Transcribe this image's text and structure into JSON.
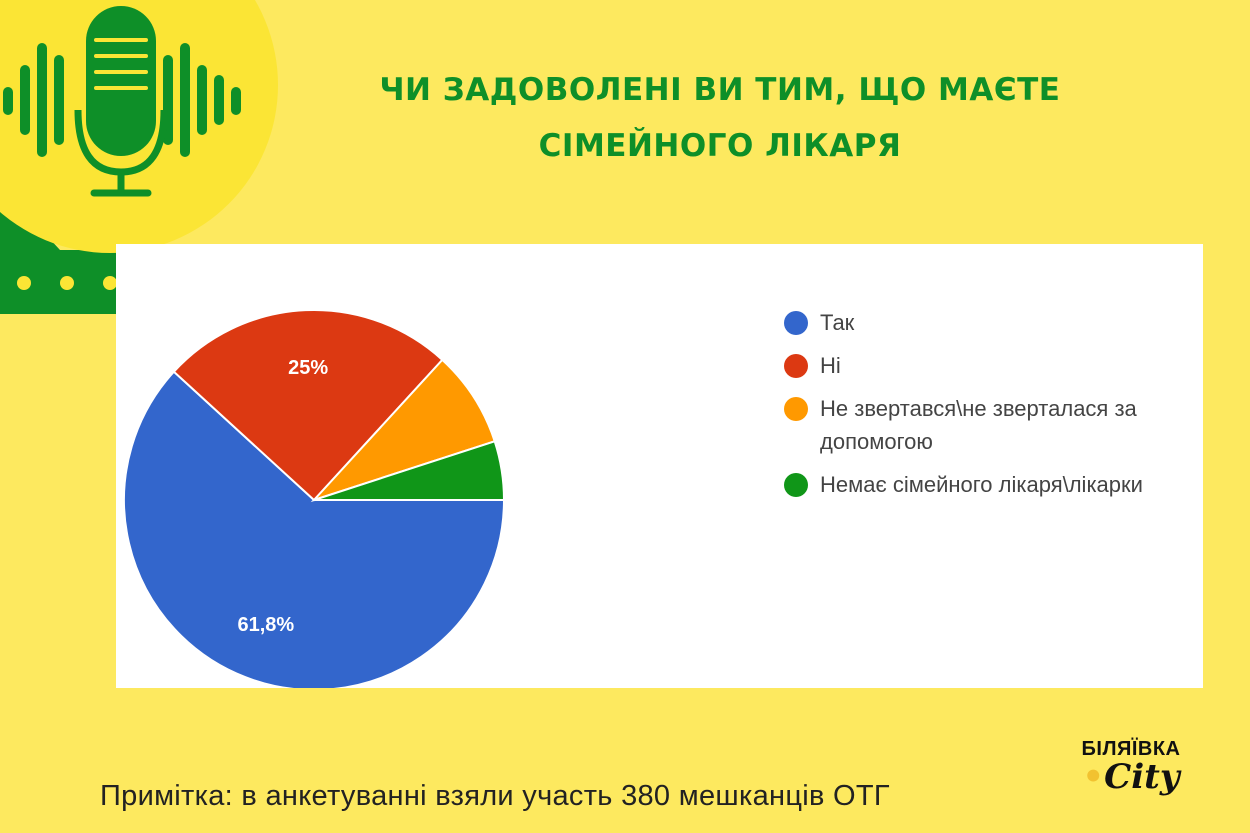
{
  "title": {
    "line1": "Чи задоволені ви тим, що маєте",
    "line2": "сімейного лікаря"
  },
  "chart_data": {
    "type": "pie",
    "categories": [
      "Так",
      "Ні",
      "Не звертався\\не зверталася за допомогою",
      "Немає сімейного лікаря\\лікарки"
    ],
    "values": [
      61.8,
      25,
      8.2,
      5
    ],
    "colors": [
      "#3366cc",
      "#dc3912",
      "#ff9900",
      "#109618"
    ],
    "data_labels": [
      "61,8%",
      "25%",
      "",
      ""
    ],
    "legend_position": "right"
  },
  "legend": {
    "item0": "Так",
    "item1": "Ні",
    "item2": "Не звертався\\не зверталася за допомогою",
    "item3": "Немає сімейного лікаря\\лікарки"
  },
  "note": "Примітка: в анкетуванні взяли участь 380 мешканців ОТГ",
  "logo": {
    "top": "БІЛЯЇВКА",
    "bottom": "City"
  },
  "colors": {
    "background": "#fde95f",
    "accent_green": "#0e8f28",
    "circle_yellow": "#fbe535"
  },
  "icons": [
    "microphone-icon",
    "sound-wave-icon"
  ]
}
